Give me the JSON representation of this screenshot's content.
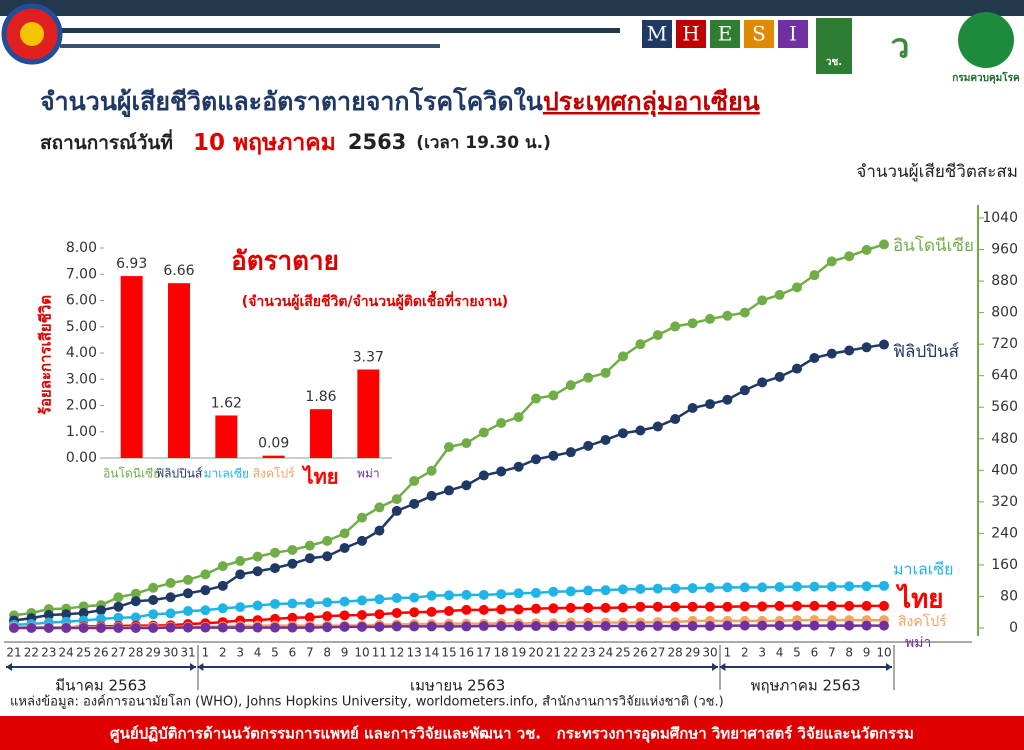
{
  "header": {
    "title_part1": "จำนวนผู้เสียชีวิตและอัตราตายจากโรคโควิดใน",
    "title_part2": "ประเทศกลุ่มอาเซียน",
    "situation_label": "สถานการณ์วันที่",
    "situation_date": "10 พฤษภาคม",
    "situation_year": "2563",
    "situation_time": "(เวลา 19.30 น.)",
    "logo_letters": [
      "M",
      "H",
      "E",
      "S",
      "I"
    ],
    "logo_nrct": "วช.",
    "logo_ddc": "กรมควบคุมโรค"
  },
  "chart_data": [
    {
      "type": "line",
      "y2_label": "จำนวนผู้เสียชีวิตสะสม",
      "categories": [
        "21",
        "22",
        "23",
        "24",
        "25",
        "26",
        "27",
        "28",
        "29",
        "30",
        "31",
        "1",
        "2",
        "3",
        "4",
        "5",
        "6",
        "7",
        "8",
        "9",
        "10",
        "11",
        "12",
        "13",
        "14",
        "15",
        "16",
        "17",
        "18",
        "19",
        "20",
        "21",
        "22",
        "23",
        "24",
        "25",
        "26",
        "27",
        "28",
        "29",
        "30",
        "1",
        "2",
        "3",
        "4",
        "5",
        "6",
        "7",
        "8",
        "9",
        "10"
      ],
      "months": [
        "มีนาคม 2563",
        "เมษายน 2563",
        "พฤษภาคม 2563"
      ],
      "y2lim": [
        0,
        1040
      ],
      "y2ticks": [
        0,
        80,
        160,
        240,
        320,
        400,
        480,
        560,
        640,
        720,
        800,
        880,
        960,
        1040
      ],
      "series": [
        {
          "name": "อินโดนีเซีย",
          "color": "#70ad47",
          "axis": "y2",
          "values": [
            32,
            38,
            48,
            49,
            55,
            58,
            78,
            87,
            102,
            114,
            122,
            136,
            157,
            170,
            181,
            191,
            198,
            209,
            221,
            240,
            280,
            306,
            327,
            373,
            399,
            459,
            469,
            496,
            520,
            535,
            582,
            590,
            616,
            635,
            647,
            689,
            720,
            743,
            765,
            773,
            784,
            792,
            800,
            831,
            845,
            864,
            895,
            930,
            943,
            959,
            973
          ]
        },
        {
          "name": "ฟิลิปปินส์",
          "color": "#203864",
          "axis": "y2",
          "values": [
            19,
            25,
            33,
            35,
            38,
            45,
            54,
            68,
            71,
            78,
            88,
            96,
            107,
            136,
            144,
            152,
            163,
            177,
            182,
            203,
            221,
            247,
            297,
            315,
            335,
            349,
            362,
            387,
            397,
            409,
            428,
            437,
            446,
            462,
            477,
            494,
            501,
            511,
            530,
            558,
            568,
            579,
            603,
            623,
            637,
            658,
            685,
            696,
            704,
            712,
            719
          ]
        },
        {
          "name": "มาเลเซีย",
          "color": "#1fb4e6",
          "axis": "y2",
          "values": [
            8,
            10,
            14,
            16,
            19,
            23,
            26,
            27,
            35,
            37,
            43,
            45,
            50,
            53,
            57,
            61,
            62,
            63,
            65,
            67,
            70,
            73,
            76,
            77,
            82,
            83,
            84,
            84,
            86,
            88,
            89,
            92,
            93,
            95,
            96,
            98,
            99,
            100,
            100,
            101,
            102,
            103,
            103,
            103,
            104,
            105,
            105,
            105,
            106,
            106,
            107
          ]
        },
        {
          "name": "ไทย",
          "color": "#ff0000",
          "axis": "y2",
          "values": [
            1,
            1,
            1,
            1,
            4,
            4,
            5,
            6,
            6,
            7,
            10,
            12,
            15,
            19,
            20,
            23,
            26,
            27,
            30,
            32,
            33,
            35,
            38,
            40,
            41,
            43,
            46,
            46,
            47,
            47,
            49,
            50,
            51,
            51,
            51,
            52,
            54,
            54,
            54,
            54,
            54,
            54,
            55,
            55,
            56,
            56,
            56,
            56,
            56,
            56,
            56
          ]
        },
        {
          "name": "สิงคโปร์",
          "color": "#f4a261",
          "axis": "y2",
          "values": [
            2,
            2,
            2,
            2,
            2,
            2,
            2,
            2,
            3,
            3,
            3,
            3,
            4,
            5,
            6,
            6,
            6,
            6,
            6,
            6,
            7,
            8,
            9,
            10,
            10,
            11,
            11,
            11,
            12,
            12,
            12,
            12,
            14,
            14,
            14,
            14,
            14,
            15,
            15,
            18,
            18,
            18,
            18,
            18,
            18,
            20,
            20,
            20,
            20,
            20,
            20
          ]
        },
        {
          "name": "พม่า",
          "color": "#7030a0",
          "axis": "y2",
          "values": [
            0,
            0,
            0,
            0,
            0,
            0,
            0,
            0,
            0,
            1,
            1,
            1,
            1,
            1,
            1,
            1,
            1,
            1,
            2,
            3,
            3,
            3,
            4,
            4,
            4,
            4,
            4,
            5,
            5,
            5,
            5,
            5,
            5,
            5,
            5,
            5,
            5,
            5,
            5,
            5,
            5,
            6,
            6,
            6,
            6,
            6,
            6,
            6,
            6,
            6,
            6
          ]
        }
      ]
    },
    {
      "type": "bar",
      "title": "อัตราตาย",
      "subtitle": "(จำนวนผู้เสียชีวิต/จำนวนผู้ติดเชื้อที่รายงาน)",
      "y_label": "ร้อยละการเสียชีวิต",
      "categories": [
        "อินโดนีเซีย",
        "ฟิลิปปินส์",
        "มาเลเซีย",
        "สิงคโปร์",
        "ไทย",
        "พม่า"
      ],
      "category_colors": [
        "#70ad47",
        "#203864",
        "#1fb4e6",
        "#f4a261",
        "#ff0000",
        "#7030a0"
      ],
      "values": [
        6.93,
        6.66,
        1.62,
        0.09,
        1.86,
        3.37
      ],
      "color": "#ff0000",
      "ylim": [
        0,
        8
      ],
      "yticks": [
        {
          "value": 0,
          "label": "0.00"
        },
        {
          "value": 1,
          "label": "1.00"
        },
        {
          "value": 2,
          "label": "2.00"
        },
        {
          "value": 3,
          "label": "3.00"
        },
        {
          "value": 4,
          "label": "4.00"
        },
        {
          "value": 5,
          "label": "5.00"
        },
        {
          "value": 6,
          "label": "6.00"
        },
        {
          "value": 7,
          "label": "7.00"
        },
        {
          "value": 8,
          "label": "8.00"
        }
      ]
    }
  ],
  "source": "แหล่งข้อมูล: องค์การอนามัยโลก (WHO), Johns Hopkins University, worldometers.info, สำนักงานการวิจัยแห่งชาติ (วช.)",
  "footer": "ศูนย์ปฏิบัติการด้านนวัตกรรมการแพทย์ และการวิจัยและพัฒนา วช.   กระทรวงการอุดมศึกษา วิทยาศาสตร์ วิจัยและนวัตกรรม"
}
